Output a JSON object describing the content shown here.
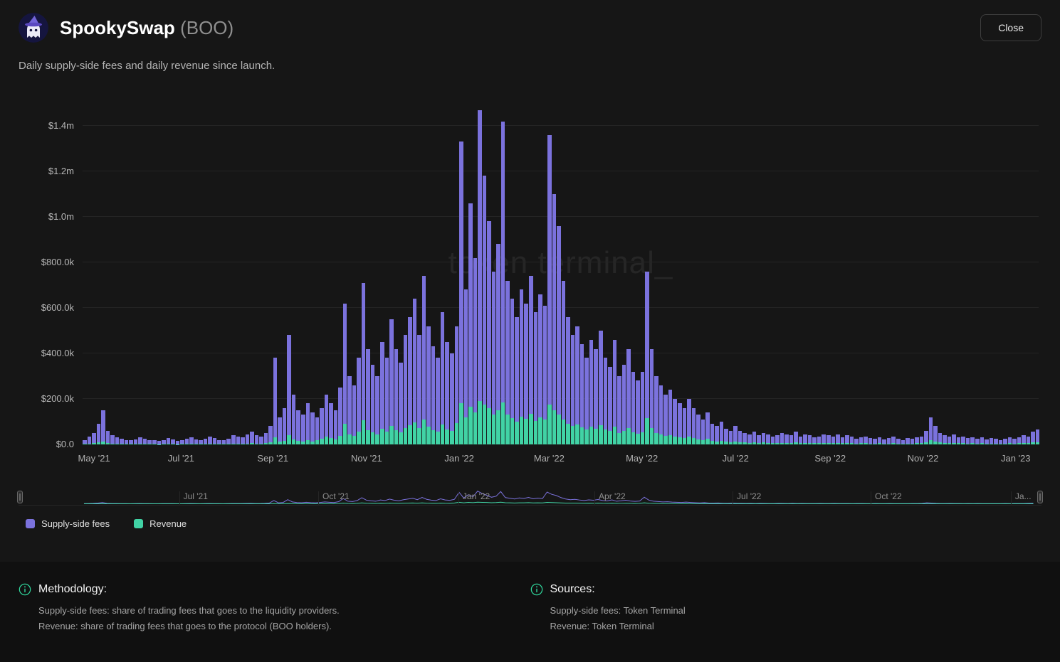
{
  "header": {
    "title": "SpookySwap",
    "ticker": "(BOO)",
    "close_label": "Close"
  },
  "subtitle": "Daily supply-side fees and daily revenue since launch.",
  "watermark": "token terminal_",
  "chart_data": {
    "type": "bar",
    "title": "Daily supply-side fees and daily revenue since launch",
    "unit": "USD",
    "value_scale": 1000,
    "ylim": [
      0,
      1400000
    ],
    "grid": true,
    "x_range": [
      "May '21",
      "Jan '23"
    ],
    "y_ticks": [
      {
        "label": "$1.4m",
        "v": 1400
      },
      {
        "label": "$1.2m",
        "v": 1200
      },
      {
        "label": "$1.0m",
        "v": 1000
      },
      {
        "label": "$800.0k",
        "v": 800
      },
      {
        "label": "$600.0k",
        "v": 600
      },
      {
        "label": "$400.0k",
        "v": 400
      },
      {
        "label": "$200.0k",
        "v": 200
      },
      {
        "label": "$0.0",
        "v": 0
      }
    ],
    "x_ticks": [
      {
        "label": "May '21",
        "f": 0.012
      },
      {
        "label": "Jul '21",
        "f": 0.103
      },
      {
        "label": "Sep '21",
        "f": 0.199
      },
      {
        "label": "Nov '21",
        "f": 0.297
      },
      {
        "label": "Jan '22",
        "f": 0.394
      },
      {
        "label": "Mar '22",
        "f": 0.488
      },
      {
        "label": "May '22",
        "f": 0.585
      },
      {
        "label": "Jul '22",
        "f": 0.683
      },
      {
        "label": "Sep '22",
        "f": 0.782
      },
      {
        "label": "Nov '22",
        "f": 0.879
      },
      {
        "label": "Jan '23",
        "f": 0.976
      }
    ],
    "series": [
      {
        "name": "Supply-side fees",
        "color": "#7b72dd",
        "values": [
          20,
          35,
          50,
          90,
          150,
          60,
          40,
          30,
          25,
          20,
          18,
          22,
          30,
          25,
          20,
          18,
          15,
          20,
          28,
          22,
          15,
          18,
          25,
          30,
          22,
          18,
          25,
          35,
          28,
          20,
          18,
          25,
          40,
          35,
          30,
          45,
          55,
          40,
          35,
          50,
          80,
          380,
          120,
          160,
          480,
          220,
          150,
          130,
          180,
          140,
          120,
          160,
          220,
          180,
          150,
          250,
          620,
          300,
          260,
          380,
          710,
          420,
          350,
          300,
          450,
          380,
          550,
          420,
          360,
          480,
          560,
          640,
          480,
          740,
          520,
          430,
          380,
          580,
          450,
          400,
          520,
          1330,
          680,
          1060,
          820,
          1470,
          1180,
          980,
          760,
          880,
          1420,
          720,
          640,
          560,
          680,
          620,
          740,
          580,
          660,
          610,
          1360,
          1100,
          960,
          720,
          560,
          480,
          520,
          440,
          380,
          460,
          420,
          500,
          380,
          340,
          460,
          300,
          350,
          420,
          320,
          280,
          320,
          760,
          420,
          300,
          260,
          220,
          240,
          200,
          180,
          160,
          200,
          160,
          130,
          110,
          140,
          90,
          80,
          100,
          70,
          60,
          80,
          60,
          50,
          45,
          55,
          40,
          50,
          45,
          35,
          40,
          50,
          45,
          40,
          55,
          35,
          45,
          40,
          30,
          35,
          45,
          40,
          35,
          45,
          30,
          40,
          35,
          25,
          30,
          35,
          28,
          25,
          30,
          22,
          28,
          35,
          25,
          20,
          28,
          24,
          30,
          35,
          60,
          120,
          80,
          50,
          40,
          35,
          45,
          30,
          35,
          28,
          32,
          25,
          30,
          22,
          28,
          24,
          20,
          26,
          30,
          25,
          30,
          40,
          35,
          55,
          65
        ]
      },
      {
        "name": "Revenue",
        "color": "#41d3a5",
        "values": [
          2,
          3,
          5,
          8,
          12,
          5,
          4,
          3,
          2,
          2,
          2,
          2,
          3,
          2,
          2,
          2,
          1,
          2,
          3,
          2,
          1,
          2,
          2,
          3,
          2,
          2,
          2,
          3,
          3,
          2,
          2,
          2,
          4,
          3,
          3,
          4,
          5,
          4,
          3,
          5,
          8,
          30,
          12,
          16,
          40,
          22,
          15,
          13,
          18,
          14,
          18,
          24,
          33,
          27,
          22,
          38,
          90,
          45,
          39,
          57,
          105,
          63,
          52,
          45,
          68,
          57,
          82,
          63,
          54,
          72,
          84,
          96,
          72,
          110,
          78,
          64,
          57,
          87,
          67,
          60,
          95,
          180,
          120,
          165,
          140,
          190,
          175,
          160,
          130,
          150,
          185,
          130,
          115,
          100,
          122,
          112,
          133,
          104,
          119,
          110,
          175,
          150,
          130,
          108,
          90,
          82,
          88,
          75,
          65,
          78,
          70,
          85,
          65,
          58,
          78,
          51,
          60,
          71,
          54,
          48,
          54,
          115,
          71,
          51,
          44,
          37,
          41,
          34,
          31,
          27,
          34,
          27,
          22,
          19,
          24,
          15,
          14,
          17,
          12,
          10,
          12,
          9,
          8,
          7,
          8,
          6,
          8,
          7,
          5,
          6,
          7,
          7,
          6,
          8,
          5,
          7,
          6,
          5,
          5,
          7,
          6,
          5,
          7,
          5,
          6,
          5,
          4,
          5,
          5,
          4,
          4,
          5,
          3,
          4,
          5,
          4,
          3,
          4,
          4,
          5,
          5,
          9,
          18,
          12,
          8,
          6,
          5,
          7,
          5,
          5,
          4,
          5,
          4,
          5,
          3,
          4,
          4,
          3,
          4,
          5,
          4,
          5,
          6,
          5,
          8,
          10
        ]
      }
    ],
    "brush": {
      "x_offset": 0.064,
      "x_span": 0.928,
      "ticks": [
        {
          "label": "Jul '21",
          "f": 0.157
        },
        {
          "label": "Oct '21",
          "f": 0.293
        },
        {
          "label": "Jan '22",
          "f": 0.43
        },
        {
          "label": "Apr '22",
          "f": 0.563
        },
        {
          "label": "Jul '22",
          "f": 0.698
        },
        {
          "label": "Oct '22",
          "f": 0.833
        },
        {
          "label": "Ja...",
          "f": 0.97
        }
      ]
    }
  },
  "legend": [
    {
      "label": "Supply-side fees",
      "color": "#7b72dd"
    },
    {
      "label": "Revenue",
      "color": "#41d3a5"
    }
  ],
  "footer": {
    "methodology": {
      "title": "Methodology:",
      "lines": [
        "Supply-side fees: share of trading fees that goes to the liquidity providers.",
        "Revenue: share of trading fees that goes to the protocol (BOO holders)."
      ]
    },
    "sources": {
      "title": "Sources:",
      "lines": [
        "Supply-side fees: Token Terminal",
        "Revenue: Token Terminal"
      ]
    }
  }
}
